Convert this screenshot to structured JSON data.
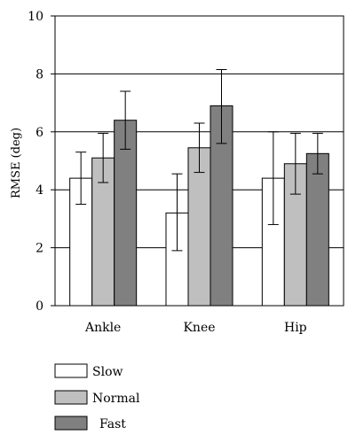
{
  "chart_data": {
    "type": "bar",
    "title": "",
    "xlabel": "",
    "ylabel": "RMSE (deg)",
    "categories": [
      "Ankle",
      "Knee",
      "Hip"
    ],
    "ylim": [
      0,
      10
    ],
    "yticks": [
      0,
      2,
      4,
      6,
      8,
      10
    ],
    "grid": "horizontal",
    "legend_position": "bottom-left",
    "series": [
      {
        "name": "Slow",
        "color": "#ffffff",
        "values": [
          4.4,
          3.2,
          4.4
        ],
        "err_low": [
          3.5,
          1.9,
          2.8
        ],
        "err_high": [
          5.3,
          4.55,
          6.0
        ]
      },
      {
        "name": "Normal",
        "color": "#bfbfbf",
        "values": [
          5.1,
          5.45,
          4.9
        ],
        "err_low": [
          4.25,
          4.6,
          3.85
        ],
        "err_high": [
          5.95,
          6.3,
          5.95
        ]
      },
      {
        "name": "Fast",
        "color": "#808080",
        "values": [
          6.4,
          6.9,
          5.25
        ],
        "err_low": [
          5.4,
          5.6,
          4.55
        ],
        "err_high": [
          7.4,
          8.15,
          5.95
        ]
      }
    ]
  }
}
